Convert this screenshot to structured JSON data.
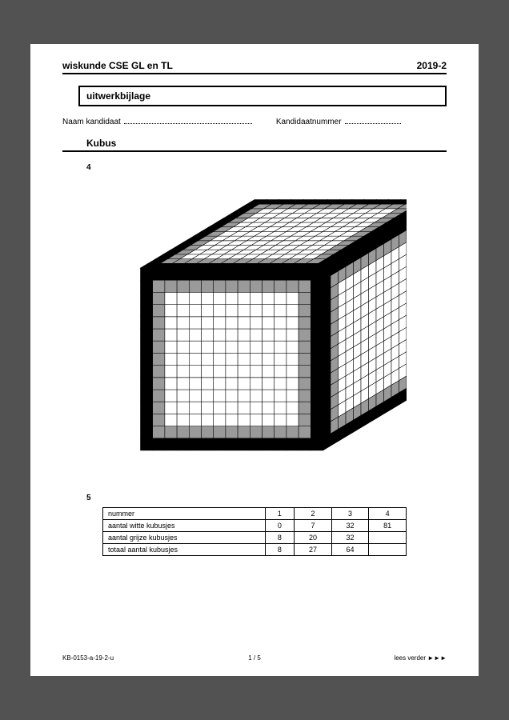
{
  "header": {
    "title": "wiskunde CSE GL en TL",
    "year": "2019-2"
  },
  "titlebox": "uitwerkbijlage",
  "name": {
    "label": "Naam kandidaat",
    "numlabel": "Kandidaatnummer"
  },
  "section": "Kubus",
  "q4": "4",
  "q5": "5",
  "cube": {
    "n": 15,
    "colors": {
      "white": "#ffffff",
      "grey": "#9a9a9a",
      "black": "#000000",
      "line": "#000000"
    },
    "line_width": 0.6
  },
  "table": {
    "columns": [
      "nummer",
      "1",
      "2",
      "3",
      "4"
    ],
    "rows": [
      [
        "aantal witte kubusjes",
        "0",
        "7",
        "32",
        "81"
      ],
      [
        "aantal grijze kubusjes",
        "8",
        "20",
        "32",
        ""
      ],
      [
        "totaal aantal kubusjes",
        "8",
        "27",
        "64",
        ""
      ]
    ]
  },
  "footer": {
    "left": "KB-0153-a-19-2-u",
    "center": "1 / 5",
    "right": "lees verder ►►►"
  }
}
